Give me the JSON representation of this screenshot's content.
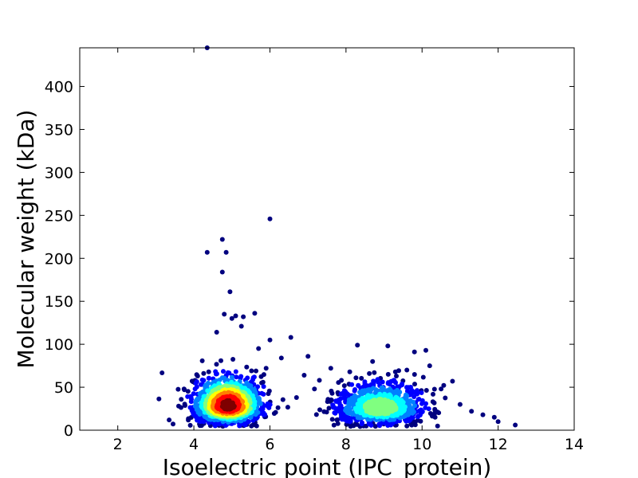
{
  "chart_data": {
    "type": "scatter",
    "title": "",
    "xlabel": "Isoelectric point (IPC_protein)",
    "ylabel": "Molecular weight (kDa)",
    "xlim": [
      1,
      14
    ],
    "ylim": [
      0,
      445
    ],
    "xticks": [
      2,
      4,
      6,
      8,
      10,
      12,
      14
    ],
    "yticks": [
      0,
      50,
      100,
      150,
      200,
      250,
      300,
      350,
      400
    ],
    "grid": false,
    "legend": "none",
    "colormap": [
      "#00007f",
      "#0000ff",
      "#0080ff",
      "#00ffff",
      "#80ff80",
      "#ffff00",
      "#ff8000",
      "#ff0000",
      "#7f0000"
    ],
    "clusters": [
      {
        "center": [
          4.9,
          28
        ],
        "spread": [
          0.45,
          11
        ],
        "density_peak": 1.0
      },
      {
        "center": [
          8.9,
          25
        ],
        "spread": [
          0.6,
          10
        ],
        "density_peak": 0.55
      }
    ],
    "outliers": [
      [
        4.35,
        445
      ],
      [
        6.0,
        246
      ],
      [
        4.75,
        222
      ],
      [
        4.35,
        207
      ],
      [
        4.85,
        207
      ],
      [
        4.75,
        184
      ],
      [
        4.95,
        161
      ],
      [
        5.6,
        136
      ],
      [
        4.8,
        135
      ],
      [
        5.1,
        133
      ],
      [
        5.3,
        132
      ],
      [
        5.0,
        130
      ],
      [
        5.25,
        121
      ],
      [
        6.0,
        105
      ],
      [
        6.55,
        108
      ],
      [
        4.6,
        114
      ],
      [
        8.3,
        99
      ],
      [
        9.1,
        98
      ],
      [
        10.1,
        93
      ],
      [
        9.8,
        91
      ],
      [
        6.3,
        84
      ],
      [
        7.0,
        86
      ],
      [
        8.7,
        80
      ],
      [
        10.2,
        75
      ],
      [
        10.8,
        57
      ],
      [
        11.3,
        22
      ],
      [
        11.9,
        15
      ],
      [
        12.0,
        10
      ],
      [
        12.45,
        6
      ],
      [
        3.35,
        12
      ],
      [
        3.6,
        28
      ],
      [
        3.75,
        47
      ],
      [
        4.1,
        63
      ],
      [
        6.9,
        64
      ],
      [
        7.3,
        58
      ],
      [
        7.6,
        72
      ],
      [
        8.1,
        68
      ],
      [
        9.6,
        70
      ],
      [
        10.5,
        48
      ],
      [
        11.0,
        30
      ],
      [
        11.6,
        18
      ],
      [
        7.8,
        42
      ],
      [
        6.7,
        38
      ],
      [
        5.9,
        72
      ],
      [
        5.7,
        95
      ]
    ]
  }
}
